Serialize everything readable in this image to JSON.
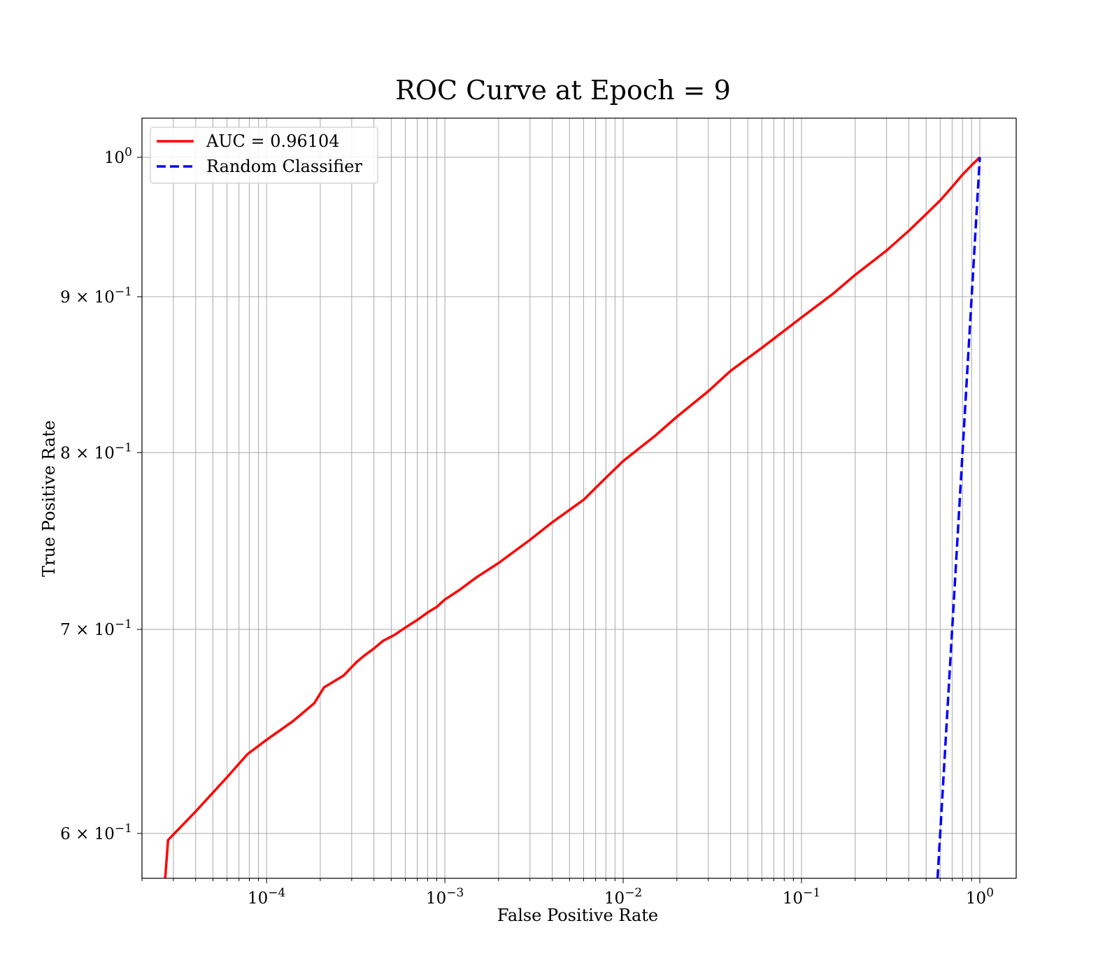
{
  "chart_data": {
    "type": "line",
    "title": "ROC Curve at Epoch = 9",
    "xlabel": "False Positive Rate",
    "ylabel": "True Positive Rate",
    "xscale": "log",
    "yscale": "log",
    "xlim": [
      2e-05,
      1.6
    ],
    "ylim": [
      0.58,
      1.03
    ],
    "grid": "on (major and minor)",
    "legend_position": "upper left",
    "x_tick_labels": [
      {
        "value": 0.0001,
        "base": "10",
        "exp": "−4"
      },
      {
        "value": 0.001,
        "base": "10",
        "exp": "−3"
      },
      {
        "value": 0.01,
        "base": "10",
        "exp": "−2"
      },
      {
        "value": 0.1,
        "base": "10",
        "exp": "−1"
      },
      {
        "value": 1,
        "base": "10",
        "exp": "0"
      }
    ],
    "y_tick_labels": [
      {
        "value": 1.0,
        "mant": "",
        "base": "10",
        "exp": "0"
      },
      {
        "value": 0.9,
        "mant": "9 × ",
        "base": "10",
        "exp": "−1"
      },
      {
        "value": 0.8,
        "mant": "8 × ",
        "base": "10",
        "exp": "−1"
      },
      {
        "value": 0.7,
        "mant": "7 × ",
        "base": "10",
        "exp": "−1"
      },
      {
        "value": 0.6,
        "mant": "6 × ",
        "base": "10",
        "exp": "−1"
      }
    ],
    "series": [
      {
        "name": "AUC = 0.96104",
        "color": "#ff0000",
        "style": "solid",
        "x": [
          2.7e-05,
          2.8e-05,
          4e-05,
          6e-05,
          7.8e-05,
          0.0001,
          0.00014,
          0.000185,
          0.00021,
          0.00027,
          0.00032,
          0.00035,
          0.0004,
          0.00045,
          0.00052,
          0.0006,
          0.0007,
          0.0008,
          0.0009,
          0.001,
          0.0012,
          0.0015,
          0.002,
          0.003,
          0.004,
          0.006,
          0.008,
          0.01,
          0.015,
          0.02,
          0.03,
          0.04,
          0.06,
          0.1,
          0.15,
          0.2,
          0.3,
          0.4,
          0.5,
          0.6,
          0.7,
          0.8,
          0.9,
          1.0
        ],
        "y": [
          0.58,
          0.597,
          0.61,
          0.626,
          0.637,
          0.644,
          0.653,
          0.662,
          0.67,
          0.676,
          0.683,
          0.686,
          0.69,
          0.694,
          0.697,
          0.701,
          0.705,
          0.709,
          0.712,
          0.716,
          0.721,
          0.728,
          0.736,
          0.749,
          0.759,
          0.772,
          0.785,
          0.795,
          0.81,
          0.822,
          0.838,
          0.851,
          0.866,
          0.886,
          0.902,
          0.915,
          0.932,
          0.946,
          0.958,
          0.968,
          0.978,
          0.987,
          0.994,
          1.0
        ]
      },
      {
        "name": "Random Classifier",
        "color": "#0000ff",
        "style": "dashed",
        "x": [
          0.58,
          1.0
        ],
        "y": [
          0.58,
          1.0
        ]
      }
    ]
  }
}
